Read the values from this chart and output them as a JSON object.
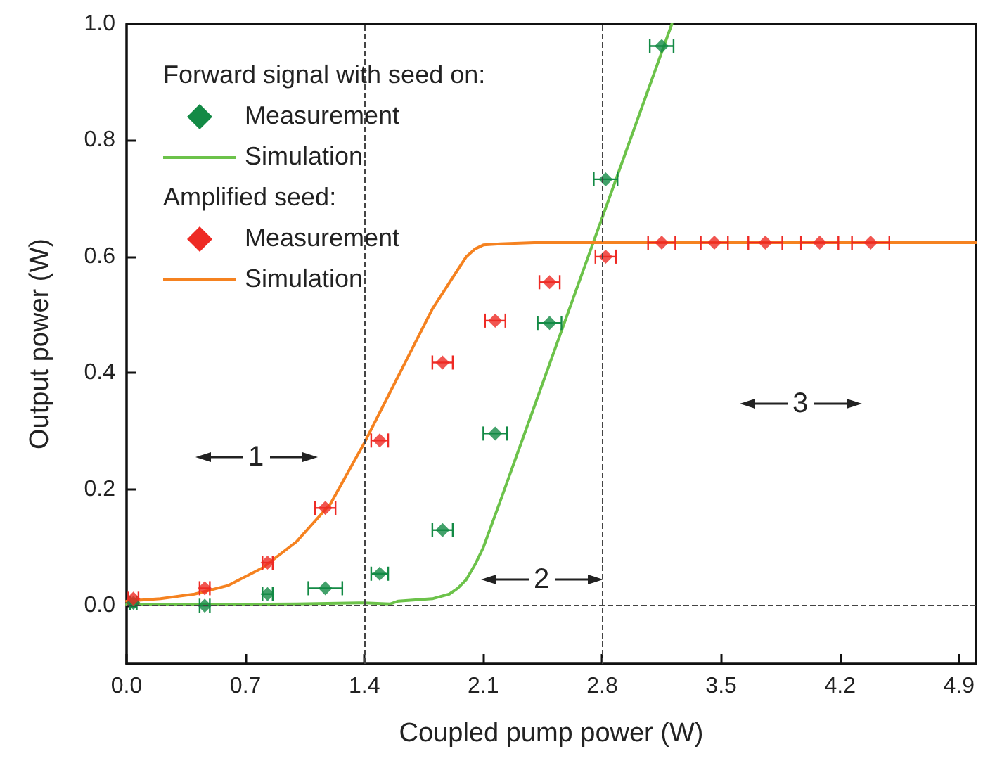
{
  "chart_data": {
    "type": "scatter",
    "xlabel": "Coupled pump power (W)",
    "ylabel": "Output power (W)",
    "xlim": [
      0,
      5.0
    ],
    "ylim": [
      -0.1,
      1.0
    ],
    "xticks": [
      {
        "value": 0,
        "label": "0.0"
      },
      0.7,
      1.4,
      2.1,
      2.8,
      3.5,
      4.2,
      4.9
    ],
    "yticks": [
      {
        "value": 0,
        "label": "0.0"
      },
      0.2,
      0.4,
      0.6,
      0.8,
      {
        "value": 1,
        "label": "1.0"
      }
    ],
    "legend": "top left",
    "series": [
      {
        "name": "Measurement",
        "marker": "diamond",
        "color": "#138a45",
        "x": [
          0.04,
          0.46,
          0.83,
          1.17,
          1.49,
          1.86,
          2.17,
          2.49,
          2.82,
          3.15
        ],
        "values": [
          0.005,
          0.0,
          0.02,
          0.03,
          0.055,
          0.13,
          0.296,
          0.486,
          0.733,
          0.962
        ],
        "xerrors": [
          0.02,
          0.03,
          0.03,
          0.1,
          0.05,
          0.06,
          0.07,
          0.07,
          0.07,
          0.07
        ]
      },
      {
        "name": "Simulation",
        "type": "line",
        "marker": "none",
        "color": "#6cc24a",
        "x": [
          0,
          0.5,
          1.0,
          1.4,
          1.55,
          1.6,
          1.8,
          1.9,
          1.95,
          2.0,
          2.05,
          2.1,
          2.2,
          3.21
        ],
        "values": [
          0.002,
          0.002,
          0.003,
          0.005,
          0.003,
          0.008,
          0.012,
          0.02,
          0.03,
          0.045,
          0.07,
          0.1,
          0.18,
          1.0
        ]
      },
      {
        "name": "Measurement",
        "marker": "diamond",
        "color": "#ee2a24",
        "x": [
          0.04,
          0.46,
          0.83,
          1.17,
          1.49,
          1.86,
          2.17,
          2.49,
          2.82,
          3.15,
          3.46,
          3.76,
          4.08,
          4.38
        ],
        "values": [
          0.012,
          0.03,
          0.074,
          0.168,
          0.284,
          0.418,
          0.49,
          0.556,
          0.6,
          0.624,
          0.624,
          0.624,
          0.624,
          0.624
        ],
        "xerrors": [
          0.03,
          0.03,
          0.03,
          0.06,
          0.05,
          0.06,
          0.06,
          0.06,
          0.06,
          0.08,
          0.08,
          0.1,
          0.11,
          0.11
        ]
      },
      {
        "name": "Simulation",
        "type": "line",
        "marker": "none",
        "color": "#f58220",
        "x": [
          0,
          0.2,
          0.4,
          0.6,
          0.8,
          1.0,
          1.2,
          1.4,
          1.6,
          1.8,
          2.0,
          2.05,
          2.1,
          2.2,
          2.4,
          5.0
        ],
        "values": [
          0.008,
          0.012,
          0.02,
          0.035,
          0.065,
          0.11,
          0.175,
          0.28,
          0.395,
          0.51,
          0.6,
          0.613,
          0.62,
          0.622,
          0.624,
          0.624
        ]
      }
    ],
    "ref_lines": [
      {
        "axis": "x",
        "value": 1.4,
        "color": "#444444",
        "line_style": "dashed"
      },
      {
        "axis": "x",
        "value": 2.8,
        "color": "#444444",
        "line_style": "dashed"
      },
      {
        "axis": "y",
        "value": 0,
        "color": "#444444",
        "line_style": "dashed"
      }
    ],
    "annotations": [
      "Forward signal with seed on:",
      "Amplified seed:",
      "1",
      "2",
      "3"
    ]
  }
}
